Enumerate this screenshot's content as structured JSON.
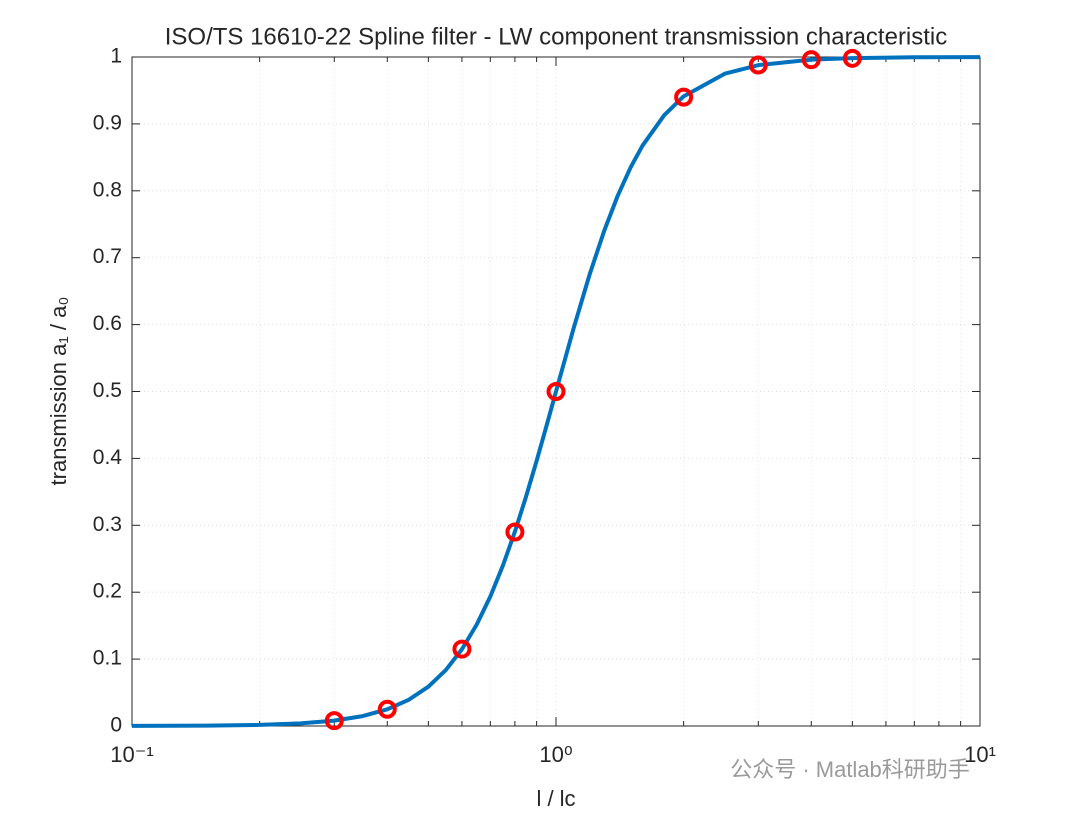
{
  "chart_data": {
    "type": "line",
    "title": "ISO/TS 16610-22 Spline filter - LW component transmission characteristic",
    "xlabel": "l / lc",
    "ylabel": "transmission a₁ / a₀",
    "watermark": "公众号 · Matlab科研助手",
    "xscale": "log",
    "xlim": [
      0.1,
      10
    ],
    "xticks": [
      {
        "value": 0.1,
        "label": "10⁻¹"
      },
      {
        "value": 1,
        "label": "10⁰"
      },
      {
        "value": 10,
        "label": "10¹"
      }
    ],
    "ylim": [
      0,
      1
    ],
    "yticks": [
      0,
      0.1,
      0.2,
      0.3,
      0.4,
      0.5,
      0.6,
      0.7,
      0.8,
      0.9,
      1
    ],
    "grid": true,
    "series": [
      {
        "color": "#0072bd",
        "marker": "none",
        "x": [
          0.1,
          0.15,
          0.2,
          0.25,
          0.3,
          0.35,
          0.4,
          0.45,
          0.5,
          0.55,
          0.6,
          0.65,
          0.7,
          0.75,
          0.8,
          0.85,
          0.9,
          0.95,
          1,
          1.1,
          1.2,
          1.3,
          1.4,
          1.5,
          1.6,
          1.8,
          2,
          2.5,
          3,
          4,
          5,
          7,
          10
        ],
        "values": [
          0.0001,
          0.0005,
          0.0016,
          0.0039,
          0.008,
          0.0148,
          0.025,
          0.0394,
          0.0588,
          0.0838,
          0.1147,
          0.1515,
          0.1936,
          0.2403,
          0.2906,
          0.343,
          0.3962,
          0.4489,
          0.5,
          0.5942,
          0.6747,
          0.7407,
          0.7935,
          0.8351,
          0.8676,
          0.913,
          0.9412,
          0.975,
          0.9878,
          0.9961,
          0.9984,
          0.9996,
          0.9999
        ]
      },
      {
        "color": "#ff0000",
        "marker": "circle",
        "x": [
          0.3,
          0.4,
          0.6,
          0.8,
          1,
          2,
          3,
          4,
          5
        ],
        "values": [
          0.008,
          0.025,
          0.115,
          0.29,
          0.5,
          0.94,
          0.988,
          0.996,
          0.998
        ]
      }
    ]
  }
}
